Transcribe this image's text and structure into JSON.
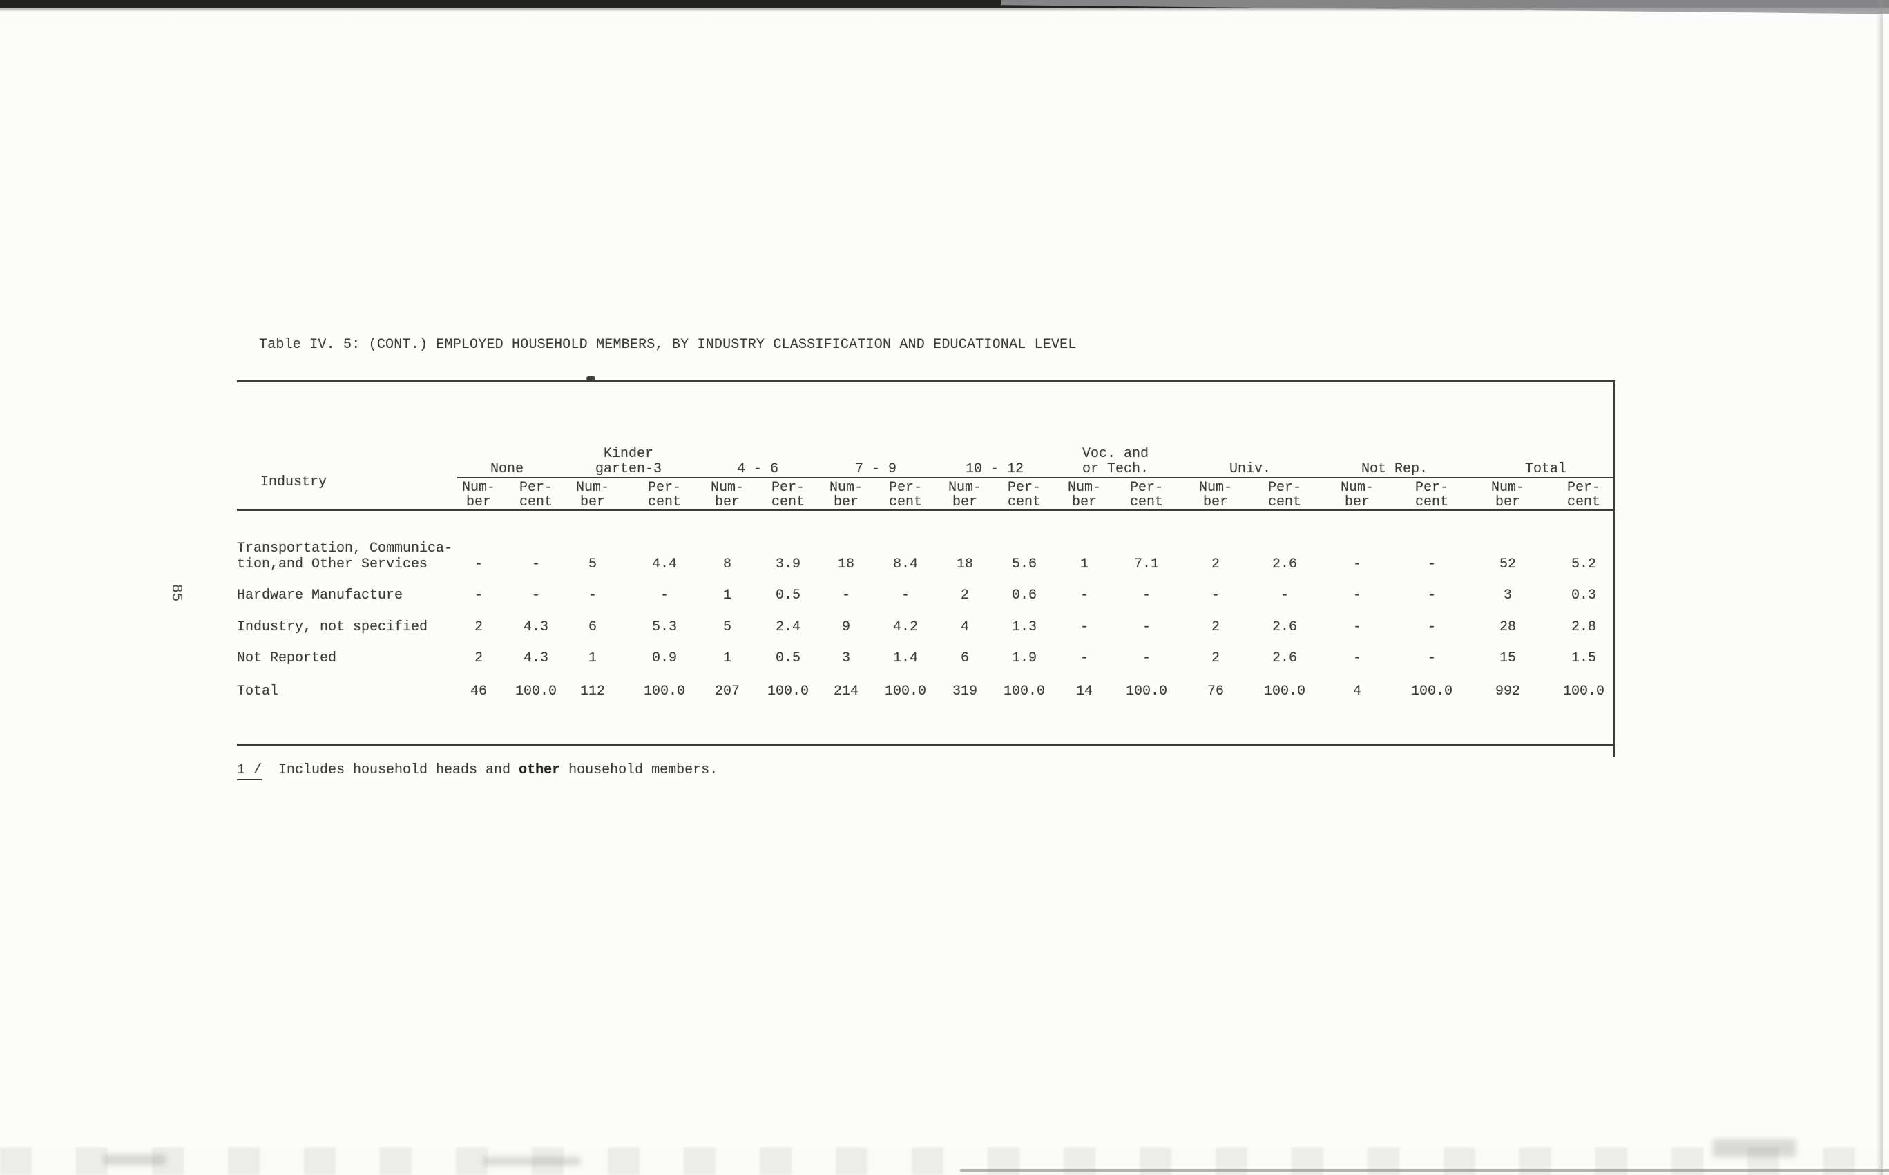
{
  "page": {
    "number": "85"
  },
  "table": {
    "title": "Table IV. 5: (CONT.) EMPLOYED HOUSEHOLD MEMBERS, BY INDUSTRY CLASSIFICATION AND EDUCATIONAL LEVEL",
    "industry_header": "Industry",
    "col_groups": [
      {
        "top_label": "",
        "label": "None"
      },
      {
        "top_label": "Kinder",
        "label": "garten-3"
      },
      {
        "top_label": "",
        "label": "4 - 6"
      },
      {
        "top_label": "",
        "label": "7 - 9"
      },
      {
        "top_label": "",
        "label": "10 - 12"
      },
      {
        "top_label": "Voc. and",
        "label": "or Tech."
      },
      {
        "top_label": "",
        "label": "Univ."
      },
      {
        "top_label": "",
        "label": "Not Rep."
      },
      {
        "top_label": "",
        "label": "Total"
      }
    ],
    "sub_headers": {
      "number": [
        "Num-",
        "ber"
      ],
      "percent": [
        "Per-",
        "cent"
      ]
    },
    "rows": [
      {
        "label": [
          "Transportation, Communica-",
          "tion,and Other Services"
        ],
        "values": [
          "-",
          "-",
          "5",
          "4.4",
          "8",
          "3.9",
          "18",
          "8.4",
          "18",
          "5.6",
          "1",
          "7.1",
          "2",
          "2.6",
          "-",
          "-",
          "52",
          "5.2"
        ]
      },
      {
        "label": [
          "Hardware Manufacture"
        ],
        "values": [
          "-",
          "-",
          "-",
          "-",
          "1",
          "0.5",
          "-",
          "-",
          "2",
          "0.6",
          "-",
          "-",
          "-",
          "-",
          "-",
          "-",
          "3",
          "0.3"
        ]
      },
      {
        "label": [
          "Industry, not specified"
        ],
        "values": [
          "2",
          "4.3",
          "6",
          "5.3",
          "5",
          "2.4",
          "9",
          "4.2",
          "4",
          "1.3",
          "-",
          "-",
          "2",
          "2.6",
          "-",
          "-",
          "28",
          "2.8"
        ]
      },
      {
        "label": [
          "Not Reported"
        ],
        "values": [
          "2",
          "4.3",
          "1",
          "0.9",
          "1",
          "0.5",
          "3",
          "1.4",
          "6",
          "1.9",
          "-",
          "-",
          "2",
          "2.6",
          "-",
          "-",
          "15",
          "1.5"
        ]
      },
      {
        "label": [
          "Total"
        ],
        "values": [
          "46",
          "100.0",
          "112",
          "100.0",
          "207",
          "100.0",
          "214",
          "100.0",
          "319",
          "100.0",
          "14",
          "100.0",
          "76",
          "100.0",
          "4",
          "100.0",
          "992",
          "100.0"
        ]
      }
    ]
  },
  "footnote": {
    "marker": "1 /",
    "text_before": "Includes household heads and ",
    "emphasized": "other",
    "text_after": " household members."
  }
}
